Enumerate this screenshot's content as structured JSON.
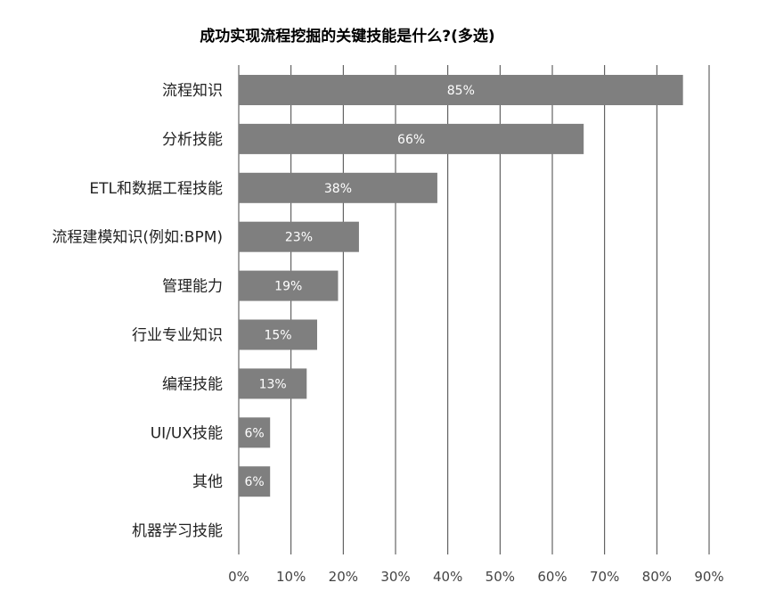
{
  "chart_data": {
    "type": "bar",
    "orientation": "horizontal",
    "title": "成功实现流程挖掘的关键技能是什么?(多选)",
    "categories": [
      "流程知识",
      "分析技能",
      "ETL和数据工程技能",
      "流程建模知识(例如:BPM)",
      "管理能力",
      "行业专业知识",
      "编程技能",
      "UI/UX技能",
      "其他",
      "机器学习技能"
    ],
    "values": [
      85,
      66,
      38,
      23,
      19,
      15,
      13,
      6,
      6,
      0
    ],
    "data_labels": [
      "85%",
      "66%",
      "38%",
      "23%",
      "19%",
      "15%",
      "13%",
      "6%",
      "6%",
      ""
    ],
    "xlim": [
      0,
      90
    ],
    "x_ticks": [
      "0%",
      "10%",
      "20%",
      "30%",
      "40%",
      "50%",
      "60%",
      "70%",
      "80%",
      "90%"
    ],
    "grid": "vertical",
    "bar_color": "#7f7f7f",
    "label_color": "#ffffff"
  }
}
